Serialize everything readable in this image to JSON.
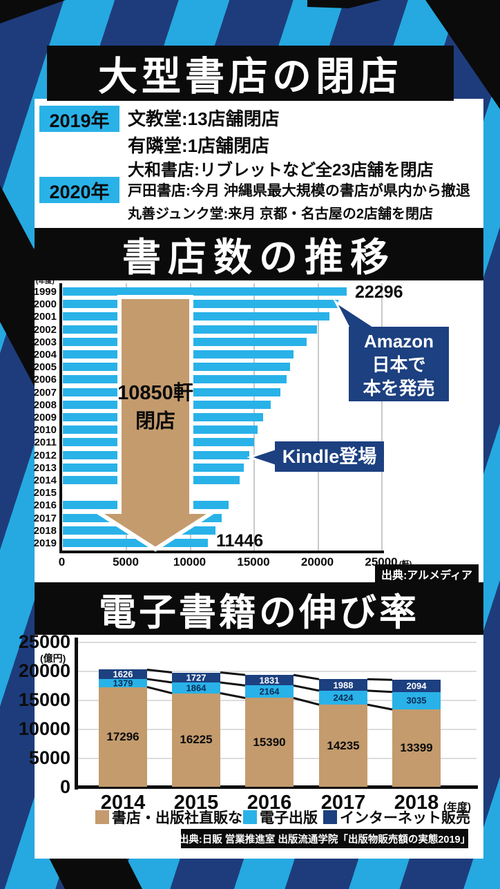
{
  "page": {
    "header_title": "大型書店の閉店"
  },
  "closures": {
    "groups": [
      {
        "year_label": "2019年",
        "items": [
          "文教堂:13店舗閉店",
          "有隣堂:1店舗閉店",
          "大和書店:リブレットなど全23店舗を閉店"
        ]
      },
      {
        "year_label": "2020年",
        "items": [
          "戸田書店:今月 沖縄県最大規模の書店が県内から撤退",
          "丸善ジュンク堂:来月 京都・名古屋の2店舗を閉店"
        ]
      }
    ]
  },
  "chart_data": [
    {
      "type": "bar",
      "orientation": "horizontal",
      "title": "書店数の推移",
      "axis_corner_label": "(年度)",
      "x_ticks": [
        "0",
        "5000",
        "10000",
        "15000",
        "20000",
        "25000"
      ],
      "x_suffix": "(軒)",
      "xlim": [
        0,
        25000
      ],
      "grid": true,
      "bar_color": "#29b2e8",
      "categories": [
        "1999",
        "2000",
        "2001",
        "2002",
        "2003",
        "2004",
        "2005",
        "2006",
        "2007",
        "2008",
        "2009",
        "2010",
        "2011",
        "2012",
        "2013",
        "2014",
        "2015",
        "2016",
        "2017",
        "2018",
        "2019"
      ],
      "values": [
        22296,
        21654,
        20939,
        19946,
        19179,
        18156,
        17839,
        17582,
        17098,
        16342,
        15765,
        15314,
        15061,
        14696,
        14241,
        13943,
        null,
        13041,
        12526,
        12026,
        11446
      ],
      "value_labels": [
        {
          "year": "1999",
          "text": "22296"
        },
        {
          "year": "2019",
          "text": "11446"
        }
      ],
      "annotations": [
        {
          "id": "amazon-callout",
          "lines": [
            "Amazon",
            "日本で",
            "本を発売"
          ],
          "points_to_year": "2000"
        },
        {
          "id": "kindle-callout",
          "lines": [
            "Kindle登場"
          ],
          "points_to_year": "2012"
        },
        {
          "id": "closure-arrow",
          "lines": [
            "10850軒",
            "閉店"
          ]
        }
      ],
      "source": "出典:アルメディア"
    },
    {
      "type": "bar",
      "stacked": true,
      "title": "電子書籍の伸び率",
      "y_unit_label": "(億円)",
      "y_ticks": [
        "0",
        "5000",
        "10000",
        "15000",
        "20000",
        "25000"
      ],
      "ylim": [
        0,
        25000
      ],
      "grid": true,
      "legend_position": "bottom",
      "categories": [
        "2014",
        "2015",
        "2016",
        "2017",
        "2018"
      ],
      "x_suffix": "(年度)",
      "series": [
        {
          "name": "書店・出版社直販など",
          "color": "#c49b6d",
          "label_color": "#0b0b0b",
          "values": [
            17296,
            16225,
            15390,
            14235,
            13399
          ]
        },
        {
          "name": "電子出版",
          "color": "#29b2e8",
          "label_color": "#0b2b55",
          "values": [
            1379,
            1864,
            2164,
            2424,
            3035
          ]
        },
        {
          "name": "インターネット販売",
          "color": "#1c4080",
          "label_color": "#ffffff",
          "values": [
            1626,
            1727,
            1831,
            1988,
            2094
          ]
        }
      ],
      "source": "出典:日販 営業推進室 出版流通学院「出版物販売額の実態2019」"
    }
  ],
  "colors": {
    "background_navy": "#1e3c7c",
    "stripe_blue": "#25a9e0",
    "accent_black": "#0b0b0b",
    "bar_cyan": "#29b2e8",
    "arrow_tan": "#c49b6d",
    "callout_navy": "#1c4080"
  }
}
